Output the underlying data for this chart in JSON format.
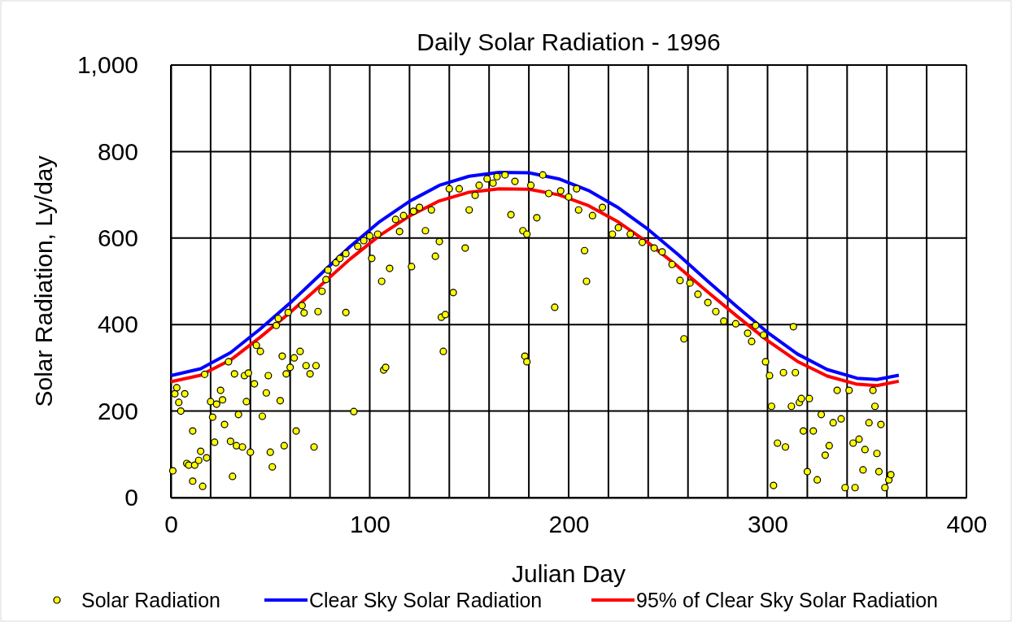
{
  "chart_data": {
    "type": "scatter",
    "title": "Daily Solar Radiation - 1996",
    "xlabel": "Julian Day",
    "ylabel": "Solar Radiation, Ly/day",
    "xlim": [
      0,
      400
    ],
    "ylim": [
      0,
      1000
    ],
    "xticks": [
      0,
      {
        "value": 20,
        "label": null
      },
      {
        "value": 40,
        "label": null
      },
      {
        "value": 60,
        "label": null
      },
      {
        "value": 80,
        "label": null
      },
      100,
      {
        "value": 120,
        "label": null
      },
      {
        "value": 140,
        "label": null
      },
      {
        "value": 160,
        "label": null
      },
      {
        "value": 180,
        "label": null
      },
      200,
      {
        "value": 220,
        "label": null
      },
      {
        "value": 240,
        "label": null
      },
      {
        "value": 260,
        "label": null
      },
      {
        "value": 280,
        "label": null
      },
      300,
      {
        "value": 320,
        "label": null
      },
      {
        "value": 340,
        "label": null
      },
      {
        "value": 360,
        "label": null
      },
      {
        "value": 380,
        "label": null
      },
      400
    ],
    "yticks": [
      0,
      200,
      400,
      600,
      800,
      {
        "value": 1000,
        "label": "1,000"
      }
    ],
    "grid": true,
    "legend": "bottom",
    "series": [
      {
        "name": "Solar Radiation",
        "marker": "circle",
        "color": "#ffff00",
        "x": [
          1,
          2,
          3,
          4,
          5,
          7,
          8,
          9,
          11,
          11,
          12,
          14,
          15,
          16,
          17,
          18,
          20,
          21,
          22,
          23,
          25,
          26,
          27,
          29,
          30,
          31,
          32,
          33,
          34,
          36,
          37,
          38,
          39,
          40,
          42,
          43,
          45,
          46,
          48,
          49,
          50,
          51,
          53,
          54,
          55,
          56,
          57,
          58,
          59,
          60,
          62,
          63,
          65,
          66,
          67,
          68,
          70,
          72,
          73,
          74,
          76,
          78,
          79,
          83,
          85,
          88,
          88,
          92,
          94,
          97,
          100,
          101,
          104,
          106,
          107,
          108,
          110,
          113,
          115,
          117,
          121,
          122,
          125,
          128,
          131,
          133,
          135,
          136,
          137,
          138,
          140,
          142,
          145,
          148,
          150,
          153,
          155,
          159,
          162,
          164,
          168,
          171,
          173,
          177,
          178,
          179,
          179,
          181,
          184,
          187,
          190,
          193,
          196,
          200,
          204,
          205,
          208,
          209,
          212,
          217,
          222,
          225,
          231,
          237,
          243,
          247,
          252,
          256,
          258,
          261,
          265,
          270,
          274,
          278,
          284,
          290,
          292,
          294,
          298,
          299,
          301,
          302,
          303,
          305,
          308,
          309,
          312,
          313,
          314,
          316,
          317,
          318,
          320,
          321,
          323,
          325,
          327,
          329,
          331,
          333,
          335,
          337,
          339,
          341,
          343,
          344,
          346,
          348,
          349,
          351,
          353,
          354,
          355,
          356,
          357,
          359,
          361,
          362
        ],
        "values": [
          62,
          240,
          254,
          220,
          200,
          240,
          79,
          75,
          154,
          38,
          75,
          86,
          107,
          26,
          285,
          92,
          222,
          186,
          128,
          216,
          248,
          226,
          169,
          314,
          130,
          49,
          286,
          120,
          192,
          117,
          282,
          222,
          288,
          105,
          263,
          352,
          338,
          188,
          242,
          282,
          105,
          71,
          398,
          414,
          224,
          327,
          120,
          286,
          428,
          301,
          323,
          154,
          338,
          444,
          427,
          305,
          286,
          117,
          305,
          430,
          477,
          504,
          526,
          543,
          553,
          428,
          564,
          199,
          581,
          594,
          605,
          553,
          609,
          500,
          295,
          301,
          530,
          643,
          615,
          652,
          534,
          662,
          671,
          617,
          665,
          558,
          592,
          417,
          338,
          423,
          714,
          474,
          714,
          577,
          665,
          699,
          722,
          737,
          727,
          742,
          746,
          654,
          731,
          617,
          327,
          314,
          609,
          722,
          647,
          746,
          703,
          440,
          709,
          695,
          714,
          665,
          571,
          500,
          652,
          671,
          609,
          624,
          609,
          590,
          577,
          568,
          539,
          502,
          367,
          496,
          470,
          451,
          430,
          408,
          402,
          380,
          361,
          398,
          376,
          314,
          282,
          211,
          28,
          126,
          289,
          117,
          211,
          395,
          289,
          220,
          229,
          154,
          60,
          229,
          154,
          41,
          192,
          98,
          120,
          173,
          248,
          182,
          23,
          248,
          126,
          23,
          135,
          64,
          111,
          173,
          248,
          211,
          102,
          60,
          169,
          23,
          41,
          53
        ]
      },
      {
        "name": "Clear Sky Solar Radiation",
        "type": "line",
        "marker": "none",
        "line_style": "solid",
        "color": "#0000ff",
        "x": [
          0,
          15,
          30,
          45,
          60,
          75,
          90,
          105,
          120,
          135,
          150,
          165,
          180,
          195,
          210,
          225,
          240,
          255,
          270,
          285,
          300,
          315,
          330,
          345,
          355,
          366
        ],
        "values": [
          282,
          298,
          335,
          390,
          450,
          515,
          580,
          638,
          685,
          722,
          743,
          752,
          751,
          737,
          710,
          670,
          620,
          562,
          500,
          440,
          382,
          332,
          296,
          276,
          273,
          283
        ]
      },
      {
        "name": "95% of Clear Sky Solar Radiation",
        "type": "line",
        "marker": "none",
        "line_style": "solid",
        "color": "#ff0000",
        "x": [
          0,
          15,
          30,
          45,
          60,
          75,
          90,
          105,
          120,
          135,
          150,
          165,
          180,
          195,
          210,
          225,
          240,
          255,
          270,
          285,
          300,
          315,
          330,
          345,
          355,
          366
        ],
        "values": [
          268,
          283,
          318,
          371,
          428,
          489,
          551,
          606,
          651,
          686,
          706,
          714,
          713,
          700,
          675,
          637,
          589,
          534,
          475,
          418,
          363,
          315,
          281,
          262,
          259,
          269
        ]
      }
    ]
  }
}
